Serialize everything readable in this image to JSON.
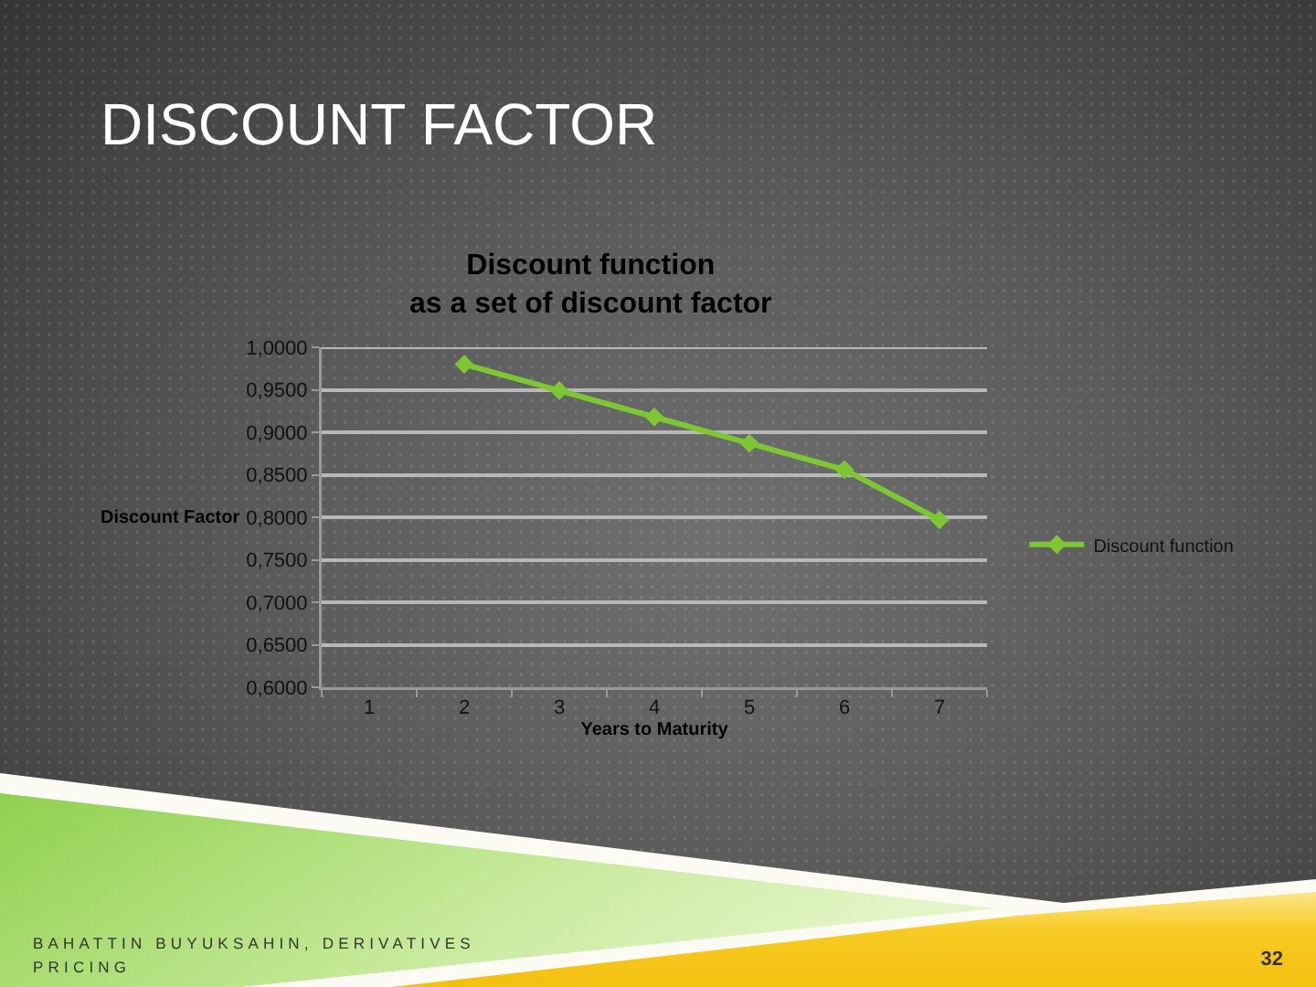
{
  "chart_data": {
    "type": "line",
    "title": "DISCOUNT FACTOR",
    "subtitle": "Discount function\nas a set of discount factor",
    "xlabel": "Years to Maturity",
    "ylabel": "Discount Factor",
    "categories": [
      "1",
      "2",
      "3",
      "4",
      "5",
      "6",
      "7"
    ],
    "series": [
      {
        "name": "Discount function",
        "color": "#7dc832",
        "values": [
          null,
          0.98,
          0.949,
          0.918,
          0.887,
          0.856,
          0.797
        ]
      }
    ],
    "ylim": [
      0.6,
      1.0
    ],
    "yticks": [
      {
        "value": 0.6,
        "label": "0,6000"
      },
      {
        "value": 0.65,
        "label": "0,6500"
      },
      {
        "value": 0.7,
        "label": "0,7000"
      },
      {
        "value": 0.75,
        "label": "0,7500"
      },
      {
        "value": 0.8,
        "label": "0,8000"
      },
      {
        "value": 0.85,
        "label": "0,8500"
      },
      {
        "value": 0.9,
        "label": "0,9000"
      },
      {
        "value": 0.95,
        "label": "0,9500"
      },
      {
        "value": 1.0,
        "label": "1,0000"
      }
    ],
    "grid": "y",
    "legend": "right",
    "marker": "diamond",
    "line_style": "solid",
    "annotations": [
      "BAHATTIN BUYUKSAHIN, DERIVATIVES\nPRICING",
      "32"
    ]
  }
}
